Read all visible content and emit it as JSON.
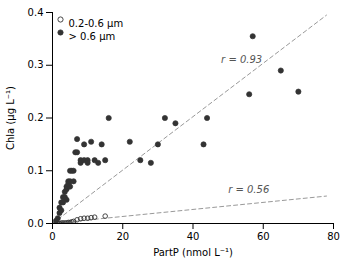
{
  "chart_data": {
    "type": "scatter",
    "xlabel": "PartP (nmol L⁻¹)",
    "ylabel": "Chla (µg L⁻¹)",
    "xlim": [
      0,
      80
    ],
    "ylim": [
      0,
      0.4
    ],
    "xticks": [
      0,
      20,
      40,
      60,
      80
    ],
    "yticks": [
      {
        "value": 0.0,
        "label": "0.0"
      },
      0.1,
      0.2,
      0.3,
      0.4
    ],
    "grid": false,
    "legend": "upper left",
    "series": [
      {
        "type": "line",
        "line_style": "dashed",
        "color": "#999999",
        "x": [
          0,
          78
        ],
        "values": [
          0.0,
          0.395
        ]
      },
      {
        "type": "line",
        "line_style": "dashed",
        "color": "#999999",
        "x": [
          0,
          78
        ],
        "values": [
          0.0,
          0.052
        ]
      },
      {
        "name": "0.2-0.6 µm",
        "type": "scatter",
        "marker": "circle_open",
        "color": "#333333",
        "x": [
          1,
          1.5,
          2,
          2.5,
          3,
          3.5,
          4,
          4.5,
          5,
          5.5,
          6,
          7,
          8,
          9,
          10,
          11,
          12,
          15
        ],
        "values": [
          0.0,
          0.0,
          0.0,
          0.001,
          0.001,
          0.001,
          0.001,
          0.002,
          0.002,
          0.003,
          0.004,
          0.007,
          0.009,
          0.01,
          0.01,
          0.011,
          0.012,
          0.014
        ]
      },
      {
        "name": "> 0.6 µm",
        "type": "scatter",
        "marker": "circle",
        "color": "#333333",
        "x": [
          1,
          1.5,
          2,
          2,
          2.5,
          2.5,
          3,
          3,
          3.5,
          3.5,
          4,
          4,
          4,
          4.5,
          4.5,
          5,
          5,
          5,
          5.5,
          6,
          6,
          6.5,
          7,
          7,
          8,
          8,
          9,
          9,
          10,
          10,
          11,
          12,
          13,
          14,
          15,
          16,
          22,
          25,
          28,
          30,
          32,
          35,
          43,
          44,
          56,
          57,
          65,
          70
        ],
        "values": [
          0.005,
          0.01,
          0.02,
          0.03,
          0.025,
          0.04,
          0.04,
          0.05,
          0.05,
          0.06,
          0.045,
          0.065,
          0.07,
          0.075,
          0.08,
          0.07,
          0.08,
          0.1,
          0.1,
          0.08,
          0.1,
          0.135,
          0.135,
          0.16,
          0.12,
          0.115,
          0.12,
          0.15,
          0.12,
          0.115,
          0.155,
          0.12,
          0.115,
          0.15,
          0.12,
          0.2,
          0.155,
          0.12,
          0.115,
          0.15,
          0.2,
          0.19,
          0.15,
          0.2,
          0.245,
          0.355,
          0.29,
          0.25
        ]
      }
    ],
    "annotations": [
      {
        "text": "r = 0.93",
        "x": 48,
        "y": 0.305
      },
      {
        "text": "r = 0.56",
        "x": 50,
        "y": 0.058
      }
    ]
  }
}
